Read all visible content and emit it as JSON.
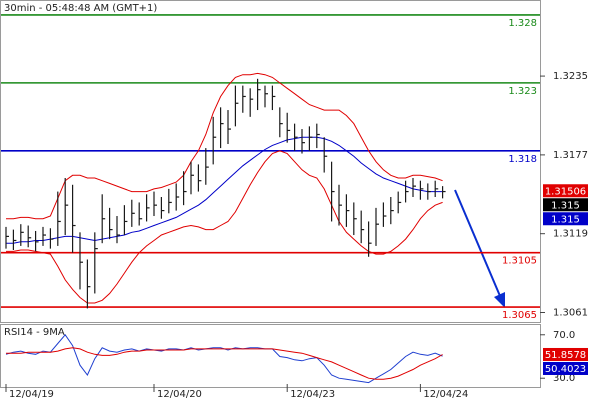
{
  "chart_data": [
    {
      "type": "ohlc",
      "title": "30min - 05:48:48 AM (GMT+1)",
      "categories": [
        "12/04/19",
        null,
        null,
        null,
        null,
        null,
        null,
        null,
        null,
        null,
        null,
        null,
        null,
        null,
        null,
        null,
        null,
        null,
        null,
        null,
        "12/04/20",
        null,
        null,
        null,
        null,
        null,
        null,
        null,
        null,
        null,
        null,
        null,
        null,
        null,
        null,
        null,
        null,
        null,
        "12/04/23",
        null,
        null,
        null,
        null,
        null,
        null,
        null,
        null,
        null,
        null,
        null,
        null,
        null,
        null,
        null,
        null,
        null,
        "12/04/24",
        null,
        null,
        null
      ],
      "high": [
        1.3124,
        1.3122,
        1.3126,
        1.3125,
        1.3121,
        1.3124,
        1.3123,
        1.315,
        1.316,
        1.3155,
        1.312,
        1.31,
        1.312,
        1.3148,
        1.3138,
        1.3132,
        1.314,
        1.3144,
        1.3142,
        1.3148,
        1.315,
        1.3146,
        1.3152,
        1.3156,
        1.3165,
        1.3172,
        1.317,
        1.3182,
        1.3205,
        1.3212,
        1.321,
        1.3228,
        1.3228,
        1.3226,
        1.3233,
        1.3228,
        1.3228,
        1.3212,
        1.3208,
        1.32,
        1.3196,
        1.3198,
        1.32,
        1.319,
        1.3172,
        1.3155,
        1.3148,
        1.3142,
        1.3136,
        1.3128,
        1.3138,
        1.3142,
        1.3146,
        1.315,
        1.3158,
        1.316,
        1.3158,
        1.3156,
        1.3158,
        1.3154
      ],
      "low": [
        1.3108,
        1.3107,
        1.311,
        1.3109,
        1.3106,
        1.311,
        1.3108,
        1.311,
        1.3118,
        1.3105,
        1.3078,
        1.3064,
        1.3075,
        1.3112,
        1.3115,
        1.3112,
        1.3118,
        1.3124,
        1.3125,
        1.3128,
        1.3132,
        1.313,
        1.3134,
        1.3136,
        1.314,
        1.3148,
        1.315,
        1.3155,
        1.317,
        1.3182,
        1.3185,
        1.3198,
        1.3208,
        1.3205,
        1.321,
        1.3212,
        1.321,
        1.319,
        1.3186,
        1.318,
        1.3178,
        1.318,
        1.3182,
        1.3164,
        1.3128,
        1.3125,
        1.3124,
        1.3118,
        1.3112,
        1.3102,
        1.311,
        1.3124,
        1.3126,
        1.3134,
        1.3142,
        1.3146,
        1.3144,
        1.3144,
        1.3146,
        1.3145
      ],
      "close": [
        1.3117,
        1.3114,
        1.312,
        1.3116,
        1.3113,
        1.3118,
        1.3115,
        1.3128,
        1.314,
        1.3125,
        1.3098,
        1.308,
        1.3108,
        1.313,
        1.3122,
        1.3118,
        1.3128,
        1.3134,
        1.313,
        1.3138,
        1.314,
        1.3136,
        1.3142,
        1.3146,
        1.315,
        1.3162,
        1.3158,
        1.3168,
        1.319,
        1.32,
        1.3196,
        1.3215,
        1.322,
        1.3218,
        1.3225,
        1.3222,
        1.322,
        1.32,
        1.3195,
        1.319,
        1.3186,
        1.319,
        1.3192,
        1.3176,
        1.315,
        1.314,
        1.3136,
        1.313,
        1.3122,
        1.3112,
        1.3126,
        1.3132,
        1.3136,
        1.3142,
        1.315,
        1.3154,
        1.3152,
        1.315,
        1.3152,
        1.315
      ],
      "color": "#1a1a1a",
      "series": [
        {
          "color": "#e00000",
          "values": [
            1.313,
            1.313,
            1.3131,
            1.3131,
            1.313,
            1.313,
            1.3132,
            1.3145,
            1.3158,
            1.3162,
            1.3162,
            1.316,
            1.316,
            1.3158,
            1.3156,
            1.3154,
            1.3152,
            1.315,
            1.315,
            1.315,
            1.3152,
            1.3153,
            1.3155,
            1.3157,
            1.3162,
            1.3172,
            1.318,
            1.3192,
            1.3208,
            1.322,
            1.3228,
            1.3234,
            1.3236,
            1.3236,
            1.3237,
            1.3236,
            1.3234,
            1.323,
            1.3226,
            1.3222,
            1.3218,
            1.3214,
            1.3212,
            1.321,
            1.321,
            1.321,
            1.3206,
            1.32,
            1.319,
            1.318,
            1.3172,
            1.3166,
            1.3162,
            1.316,
            1.316,
            1.3162,
            1.3162,
            1.3161,
            1.316,
            1.3158
          ]
        },
        {
          "color": "#e00000",
          "values": [
            1.3106,
            1.3106,
            1.3107,
            1.3107,
            1.3106,
            1.3105,
            1.3104,
            1.3095,
            1.3085,
            1.3078,
            1.3072,
            1.3068,
            1.3068,
            1.307,
            1.3075,
            1.3082,
            1.309,
            1.3098,
            1.3105,
            1.311,
            1.3114,
            1.3118,
            1.312,
            1.3122,
            1.3124,
            1.3125,
            1.3124,
            1.3122,
            1.3122,
            1.3125,
            1.3128,
            1.3135,
            1.3145,
            1.3155,
            1.3164,
            1.3172,
            1.3178,
            1.318,
            1.3178,
            1.3172,
            1.3166,
            1.3162,
            1.316,
            1.3152,
            1.314,
            1.3128,
            1.312,
            1.3115,
            1.311,
            1.3106,
            1.3104,
            1.3104,
            1.3106,
            1.311,
            1.3115,
            1.3122,
            1.313,
            1.3136,
            1.314,
            1.3142
          ]
        },
        {
          "color": "#0000c8",
          "values": [
            1.3112,
            1.3112,
            1.3113,
            1.3113,
            1.3114,
            1.3114,
            1.3115,
            1.3116,
            1.3117,
            1.3117,
            1.3116,
            1.3115,
            1.3114,
            1.3115,
            1.3116,
            1.3117,
            1.3118,
            1.312,
            1.3121,
            1.3123,
            1.3125,
            1.3127,
            1.3129,
            1.3131,
            1.3134,
            1.3137,
            1.314,
            1.3144,
            1.3149,
            1.3154,
            1.3159,
            1.3164,
            1.3169,
            1.3173,
            1.3177,
            1.3181,
            1.3184,
            1.3186,
            1.3188,
            1.3189,
            1.319,
            1.319,
            1.319,
            1.3189,
            1.3187,
            1.3184,
            1.318,
            1.3176,
            1.3171,
            1.3167,
            1.3163,
            1.316,
            1.3158,
            1.3156,
            1.3154,
            1.3152,
            1.3151,
            1.315,
            1.315,
            1.315
          ]
        }
      ],
      "levels": [
        {
          "value": 1.328,
          "color": "#1a8a1a"
        },
        {
          "value": 1.323,
          "color": "#1a8a1a"
        },
        {
          "value": 1.318,
          "color": "#0000c8"
        },
        {
          "value": 1.3105,
          "color": "#e00000"
        },
        {
          "value": 1.3065,
          "color": "#e00000"
        }
      ],
      "readouts": [
        {
          "value": 1.31506,
          "color": "#e00000"
        },
        {
          "value": 1.315,
          "color": "#000000"
        },
        {
          "value": 1.315,
          "color": "#0000c8"
        }
      ],
      "ylim": [
        1.3054,
        1.3291
      ],
      "yticks": [
        1.3235,
        1.3177,
        1.3119,
        1.3061
      ]
    },
    {
      "type": "line",
      "title": "RSI14 - 9MA",
      "series": [
        {
          "color": "#1f3fd0",
          "values": [
            52,
            54,
            55,
            53,
            52,
            55,
            54,
            62,
            70,
            60,
            42,
            33,
            48,
            58,
            55,
            54,
            56,
            57,
            55,
            57,
            56,
            55,
            57,
            57,
            56,
            58,
            56,
            57,
            58,
            58,
            56,
            58,
            57,
            58,
            58,
            57,
            57,
            50,
            49,
            47,
            46,
            48,
            49,
            42,
            33,
            30,
            29,
            28,
            27,
            26,
            30,
            34,
            38,
            44,
            50,
            54,
            52,
            51,
            53,
            50.4023
          ]
        },
        {
          "color": "#e00000",
          "values": [
            53,
            53,
            53,
            54,
            54,
            54,
            54,
            55,
            57,
            58,
            57,
            54,
            52,
            51,
            51,
            52,
            54,
            55,
            55,
            56,
            56,
            56,
            56,
            56,
            56,
            57,
            57,
            57,
            57,
            57,
            57,
            57,
            57,
            57,
            57,
            57,
            57,
            56,
            55,
            54,
            53,
            51,
            49,
            47,
            45,
            42,
            39,
            36,
            33,
            30,
            29,
            29,
            30,
            32,
            35,
            38,
            42,
            45,
            48,
            51.8578
          ]
        }
      ],
      "readouts": [
        {
          "value": 51.8578,
          "color": "#e00000"
        },
        {
          "value": 50.4023,
          "color": "#0000c8"
        }
      ],
      "ylim": [
        21,
        79
      ],
      "yticks": [
        {
          "value": 70,
          "label": "70.0"
        },
        {
          "value": 30,
          "label": "30.0"
        }
      ]
    }
  ]
}
